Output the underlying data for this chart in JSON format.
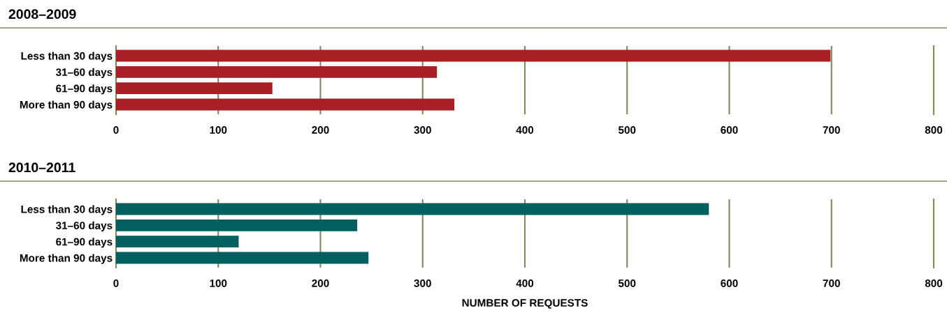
{
  "chart_data": [
    {
      "type": "bar",
      "orientation": "horizontal",
      "title": "2008–2009",
      "categories": [
        "Less than 30 days",
        "31–60 days",
        "61–90 days",
        "More than 90 days"
      ],
      "series": [
        {
          "color": "#a91f25",
          "values": [
            699,
            314,
            153,
            331
          ]
        }
      ],
      "xlim": [
        0,
        800
      ],
      "xticks": [
        0,
        100,
        200,
        300,
        400,
        500,
        600,
        700,
        800
      ],
      "grid": "x"
    },
    {
      "type": "bar",
      "orientation": "horizontal",
      "title": "2010–2011",
      "xlabel": "NUMBER OF REQUESTS",
      "categories": [
        "Less than 30 days",
        "31–60 days",
        "61–90 days",
        "More than 90 days"
      ],
      "series": [
        {
          "color": "#006060",
          "values": [
            580,
            236,
            120,
            247
          ]
        }
      ],
      "xlim": [
        0,
        800
      ],
      "xticks": [
        0,
        100,
        200,
        300,
        400,
        500,
        600,
        700,
        800
      ],
      "grid": "x"
    }
  ]
}
